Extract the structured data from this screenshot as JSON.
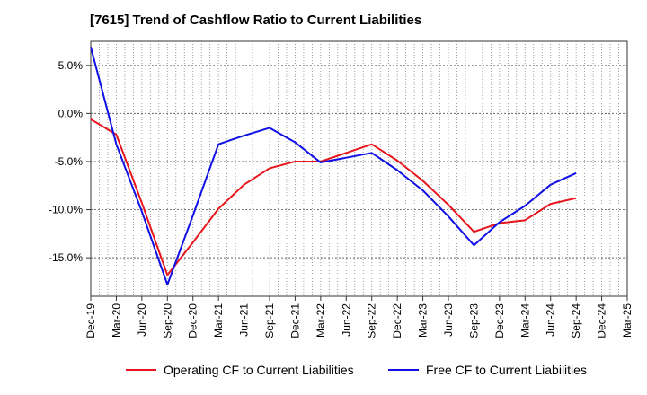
{
  "chart_data": {
    "type": "line",
    "title": "[7615]  Trend of Cashflow Ratio to Current Liabilities",
    "xlabel": "",
    "ylabel": "",
    "x_ticks": [
      "Dec-19",
      "Mar-20",
      "Jun-20",
      "Sep-20",
      "Dec-20",
      "Mar-21",
      "Jun-21",
      "Sep-21",
      "Dec-21",
      "Mar-22",
      "Jun-22",
      "Sep-22",
      "Dec-22",
      "Mar-23",
      "Jun-23",
      "Sep-23",
      "Dec-23",
      "Mar-24",
      "Jun-24",
      "Sep-24",
      "Dec-24",
      "Mar-25"
    ],
    "y_ticks": [
      "5.0%",
      "0.0%",
      "-5.0%",
      "-10.0%",
      "-15.0%"
    ],
    "y_tick_values": [
      5,
      0,
      -5,
      -10,
      -15
    ],
    "ylim": [
      -19,
      7.5
    ],
    "grid": true,
    "legend_position": "bottom",
    "series": [
      {
        "name": "Operating CF to Current Liabilities",
        "color": "#e8141b",
        "x": [
          "Dec-19",
          "Mar-20",
          "Jun-20",
          "Sep-20",
          "Dec-20",
          "Mar-21",
          "Jun-21",
          "Sep-21",
          "Dec-21",
          "Mar-22",
          "Jun-22",
          "Sep-22",
          "Dec-22",
          "Mar-23",
          "Jun-23",
          "Sep-23",
          "Dec-23",
          "Mar-24",
          "Jun-24",
          "Sep-24"
        ],
        "values": [
          -0.6,
          -2.2,
          -9.3,
          -16.8,
          -13.4,
          -9.9,
          -7.4,
          -5.7,
          -5.0,
          -5.0,
          -4.1,
          -3.2,
          -4.9,
          -7.0,
          -9.5,
          -12.3,
          -11.4,
          -11.1,
          -9.4,
          -8.8
        ]
      },
      {
        "name": "Free CF to Current Liabilities",
        "color": "#1010e6",
        "x": [
          "Dec-19",
          "Mar-20",
          "Jun-20",
          "Sep-20",
          "Dec-20",
          "Mar-21",
          "Jun-21",
          "Sep-21",
          "Dec-21",
          "Mar-22",
          "Jun-22",
          "Sep-22",
          "Dec-22",
          "Mar-23",
          "Jun-23",
          "Sep-23",
          "Dec-23",
          "Mar-24",
          "Jun-24",
          "Sep-24"
        ],
        "values": [
          6.9,
          -3.2,
          -10.2,
          -17.8,
          -10.6,
          -3.2,
          -2.3,
          -1.5,
          -3.0,
          -5.1,
          -4.6,
          -4.1,
          -5.9,
          -8.0,
          -10.7,
          -13.7,
          -11.3,
          -9.6,
          -7.4,
          -6.2
        ]
      }
    ]
  }
}
